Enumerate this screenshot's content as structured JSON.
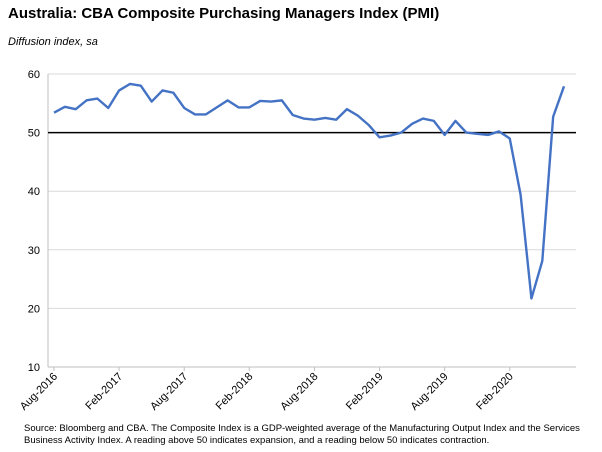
{
  "title": "Australia: CBA Composite Purchasing Managers Index (PMI)",
  "subtitle": "Diffusion index, sa",
  "source": "Source: Bloomberg and CBA. The Composite Index is a GDP-weighted average of the Manufacturing Output Index and the Services Business Activity Index.  A reading above 50 indicates expansion, and a reading below 50 indicates contraction.",
  "chart_data": {
    "type": "line",
    "title": "Australia: CBA Composite Purchasing Managers Index (PMI)",
    "ylabel": "Diffusion index, sa",
    "ylim": [
      10,
      60
    ],
    "yticks": [
      10,
      20,
      30,
      40,
      50,
      60
    ],
    "reference_line": 50,
    "line_color": "#4472C4",
    "xtick_labels": [
      {
        "label": "Aug-2016",
        "index": 0
      },
      {
        "label": "Feb-2017",
        "index": 6
      },
      {
        "label": "Aug-2017",
        "index": 12
      },
      {
        "label": "Feb-2018",
        "index": 18
      },
      {
        "label": "Aug-2018",
        "index": 24
      },
      {
        "label": "Feb-2019",
        "index": 30
      },
      {
        "label": "Aug-2019",
        "index": 36
      },
      {
        "label": "Feb-2020",
        "index": 42
      }
    ],
    "series": [
      {
        "values": [
          53.4,
          54.4,
          54.0,
          55.5,
          55.8,
          54.2,
          57.2,
          58.3,
          58.0,
          55.3,
          57.2,
          56.8,
          54.2,
          53.1,
          53.1,
          54.3,
          55.5,
          54.3,
          54.3,
          55.4,
          55.3,
          55.5,
          53.0,
          52.4,
          52.2,
          52.5,
          52.2,
          54.0,
          52.9,
          51.3,
          49.2,
          49.5,
          50.0,
          51.5,
          52.4,
          52.0,
          49.6,
          52.0,
          50.0,
          49.8,
          49.6,
          50.2,
          49.0,
          39.4,
          21.7,
          28.1,
          52.7,
          57.9
        ]
      }
    ]
  }
}
